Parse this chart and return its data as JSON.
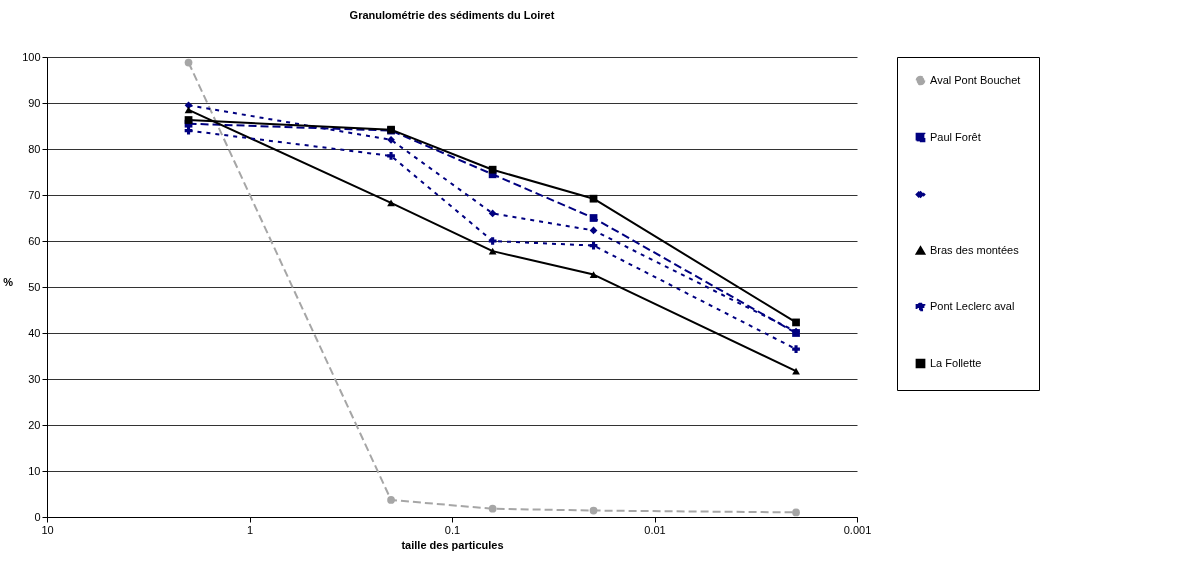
{
  "chart_data": {
    "type": "line",
    "title": "Granulométrie des sédiments du Loiret",
    "xlabel": "taille des particules",
    "ylabel": "%",
    "x": [
      2,
      0.2,
      0.063,
      0.02,
      0.002
    ],
    "xlim": [
      10,
      0.001
    ],
    "xticks": [
      10,
      1,
      0.1,
      0.01,
      0.001
    ],
    "log": "x",
    "ylim": [
      0,
      100
    ],
    "yticks": [
      0,
      10,
      20,
      30,
      40,
      50,
      60,
      70,
      80,
      90,
      100
    ],
    "grid": "y",
    "legend": "right",
    "series": [
      {
        "name": "Aval Pont Bouchet",
        "color": "#a6a6a6",
        "marker": "circle",
        "line_style": "dashed",
        "values": [
          98.8,
          3.7,
          1.8,
          1.4,
          1.0
        ]
      },
      {
        "name": "Paul Forêt",
        "color": "#000080",
        "marker": "square",
        "line_style": "dashed",
        "values": [
          85.5,
          84,
          74.5,
          65,
          40
        ]
      },
      {
        "color": "#000080",
        "marker": "diamond",
        "line_style": "dotted",
        "values": [
          89.5,
          82,
          66,
          62.3,
          40.3
        ]
      },
      {
        "name": "Bras des montées",
        "color": "#000000",
        "marker": "triangle",
        "line_style": "solid",
        "values": [
          88.5,
          68.3,
          57.8,
          52.7,
          31.7
        ]
      },
      {
        "name": "Pont Leclerc aval",
        "color": "#000080",
        "marker": "cross",
        "line_style": "dotted",
        "values": [
          84,
          78.5,
          60,
          59,
          36.5
        ]
      },
      {
        "name": "La Follette",
        "color": "#000000",
        "marker": "square",
        "line_style": "solid",
        "values": [
          86.3,
          84.2,
          75.5,
          69.2,
          42.3
        ]
      }
    ]
  }
}
